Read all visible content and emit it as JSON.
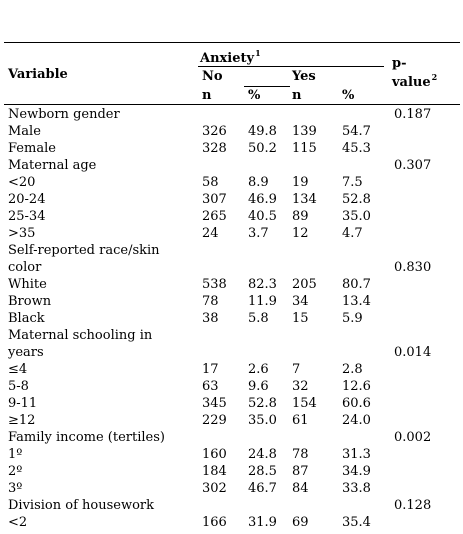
{
  "header": {
    "variable": "Variable",
    "anxiety": "Anxiety",
    "anxiety_sup": "1",
    "no": "No",
    "yes": "Yes",
    "pvalue_line1": "p-",
    "pvalue_line2": "value",
    "pvalue_sup": "2",
    "n1": "n",
    "pct1": "%",
    "n2": "n",
    "pct2": "%"
  },
  "rows": [
    {
      "label": "Newborn gender",
      "n_no": "",
      "pct_no": "",
      "n_yes": "",
      "pct_yes": "",
      "p": "0.187"
    },
    {
      "label": "Male",
      "n_no": "326",
      "pct_no": "49.8",
      "n_yes": "139",
      "pct_yes": "54.7",
      "p": ""
    },
    {
      "label": "Female",
      "n_no": "328",
      "pct_no": "50.2",
      "n_yes": "115",
      "pct_yes": "45.3",
      "p": ""
    },
    {
      "label": "Maternal age",
      "n_no": "",
      "pct_no": "",
      "n_yes": "",
      "pct_yes": "",
      "p": "0.307"
    },
    {
      "label": "<20",
      "n_no": "58",
      "pct_no": "8.9",
      "n_yes": "19",
      "pct_yes": "7.5",
      "p": ""
    },
    {
      "label": "20-24",
      "n_no": "307",
      "pct_no": "46.9",
      "n_yes": "134",
      "pct_yes": "52.8",
      "p": ""
    },
    {
      "label": "25-34",
      "n_no": "265",
      "pct_no": "40.5",
      "n_yes": "89",
      "pct_yes": "35.0",
      "p": ""
    },
    {
      "label": ">35",
      "n_no": "24",
      "pct_no": "3.7",
      "n_yes": "12",
      "pct_yes": "4.7",
      "p": ""
    },
    {
      "label": "Self-reported race/skin",
      "n_no": "",
      "pct_no": "",
      "n_yes": "",
      "pct_yes": "",
      "p": ""
    },
    {
      "label": "color",
      "n_no": "",
      "pct_no": "",
      "n_yes": "",
      "pct_yes": "",
      "p": "0.830"
    },
    {
      "label": "White",
      "n_no": "538",
      "pct_no": "82.3",
      "n_yes": "205",
      "pct_yes": "80.7",
      "p": ""
    },
    {
      "label": "Brown",
      "n_no": "78",
      "pct_no": "11.9",
      "n_yes": "34",
      "pct_yes": "13.4",
      "p": ""
    },
    {
      "label": "Black",
      "n_no": "38",
      "pct_no": "5.8",
      "n_yes": "15",
      "pct_yes": "5.9",
      "p": ""
    },
    {
      "label": "Maternal schooling in",
      "n_no": "",
      "pct_no": "",
      "n_yes": "",
      "pct_yes": "",
      "p": ""
    },
    {
      "label": "years",
      "n_no": "",
      "pct_no": "",
      "n_yes": "",
      "pct_yes": "",
      "p": "0.014"
    },
    {
      "label": "≤4",
      "n_no": "17",
      "pct_no": "2.6",
      "n_yes": "7",
      "pct_yes": "2.8",
      "p": ""
    },
    {
      "label": "5-8",
      "n_no": "63",
      "pct_no": "9.6",
      "n_yes": "32",
      "pct_yes": "12.6",
      "p": ""
    },
    {
      "label": "9-11",
      "n_no": "345",
      "pct_no": "52.8",
      "n_yes": "154",
      "pct_yes": "60.6",
      "p": ""
    },
    {
      "label": "≥12",
      "n_no": "229",
      "pct_no": "35.0",
      "n_yes": "61",
      "pct_yes": "24.0",
      "p": ""
    },
    {
      "label": "Family income (tertiles)",
      "n_no": "",
      "pct_no": "",
      "n_yes": "",
      "pct_yes": "",
      "p": "0.002"
    },
    {
      "label": "1º",
      "n_no": "160",
      "pct_no": "24.8",
      "n_yes": "78",
      "pct_yes": "31.3",
      "p": ""
    },
    {
      "label": "2º",
      "n_no": "184",
      "pct_no": "28.5",
      "n_yes": "87",
      "pct_yes": "34.9",
      "p": ""
    },
    {
      "label": "3º",
      "n_no": "302",
      "pct_no": "46.7",
      "n_yes": "84",
      "pct_yes": "33.8",
      "p": ""
    },
    {
      "label": "Division of housework",
      "n_no": "",
      "pct_no": "",
      "n_yes": "",
      "pct_yes": "",
      "p": "0.128"
    },
    {
      "label": "<2",
      "n_no": "166",
      "pct_no": "31.9",
      "n_yes": "69",
      "pct_yes": "35.4",
      "p": ""
    }
  ]
}
